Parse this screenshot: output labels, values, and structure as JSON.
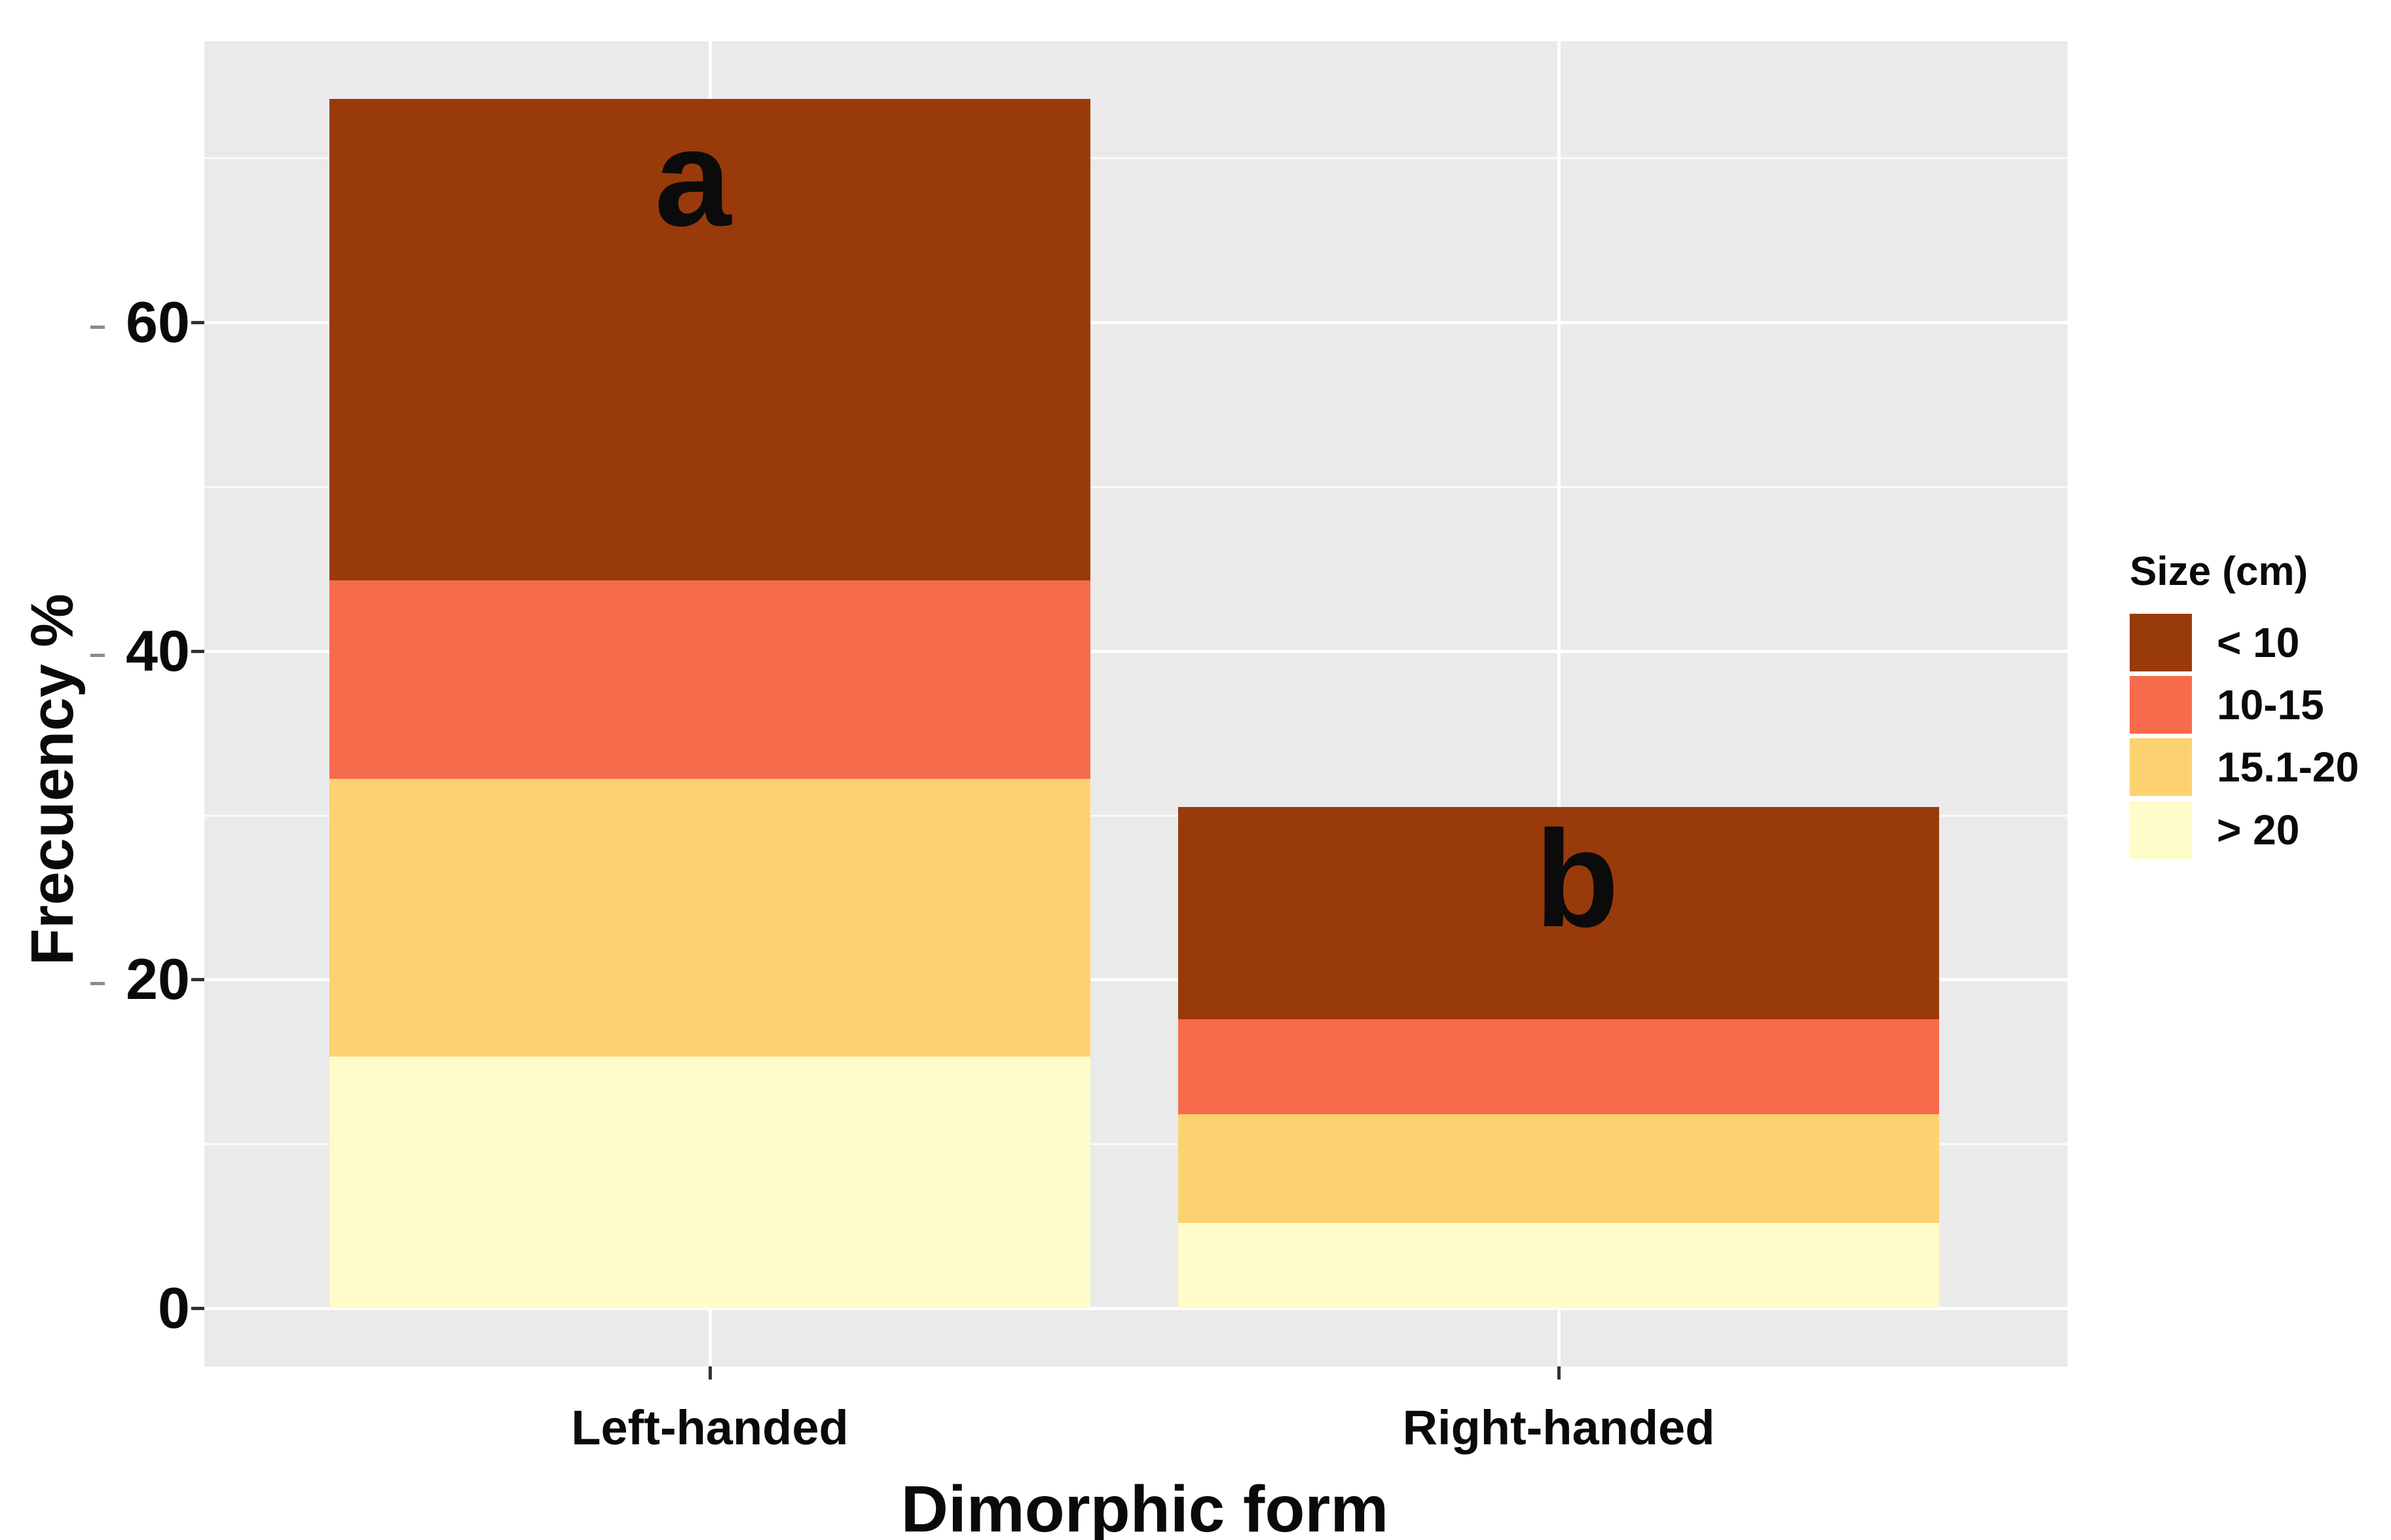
{
  "style": {
    "panel_bg": "#EAEAEA",
    "grid_color": "#FFFFFF",
    "text_color": "#0A0A0A",
    "figure_bg": "#FFFFFF"
  },
  "axes": {
    "y": {
      "title": "Frecuency %",
      "tick_labels": [
        "0",
        "20",
        "40",
        "60"
      ],
      "tick_values": [
        0,
        20,
        40,
        60
      ],
      "minor_tick_values": [
        10,
        30,
        50,
        70
      ]
    },
    "x": {
      "title": "Dimorphic form",
      "categories": [
        "Left-handed",
        "Right-handed"
      ]
    }
  },
  "legend": {
    "title": "Size (cm)",
    "items": [
      {
        "label": "< 10",
        "color": "#993A0B"
      },
      {
        "label": "10-15",
        "color": "#F76B4D"
      },
      {
        "label": "15.1-20",
        "color": "#FCD271"
      },
      {
        "label": "> 20",
        "color": "#FEFCC8"
      }
    ]
  },
  "chart_data": {
    "type": "bar",
    "stacked": true,
    "title": "",
    "xlabel": "Dimorphic form",
    "ylabel": "Frecuency %",
    "categories": [
      "Left-handed",
      "Right-handed"
    ],
    "series": [
      {
        "name": "< 10",
        "color": "#993A0B",
        "values": [
          29.3,
          12.9
        ]
      },
      {
        "name": "10-15",
        "color": "#F76B4D",
        "values": [
          12.1,
          5.8
        ]
      },
      {
        "name": "15.1-20",
        "color": "#FCD271",
        "values": [
          16.9,
          6.6
        ]
      },
      {
        "name": "> 20",
        "color": "#FEFCC8",
        "values": [
          15.3,
          5.2
        ]
      }
    ],
    "stack_order_bottom_to_top": [
      "> 20",
      "15.1-20",
      "10-15",
      "< 10"
    ],
    "totals": [
      73.6,
      30.5
    ],
    "bar_annotations": [
      "a",
      "b"
    ],
    "ylim": [
      0,
      80
    ],
    "yticks": [
      0,
      20,
      40,
      60
    ],
    "grid": true,
    "legend_position": "right"
  }
}
